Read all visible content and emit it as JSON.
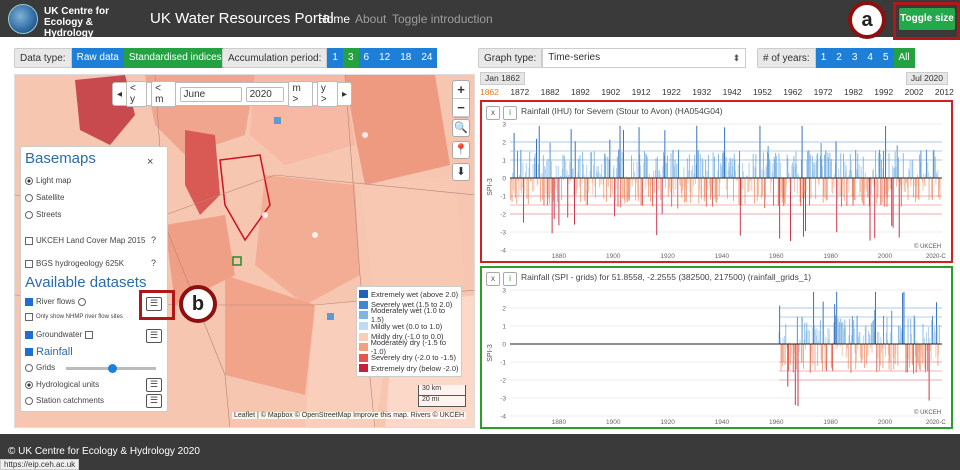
{
  "header": {
    "logo_line1": "UK Centre for",
    "logo_line2": "Ecology & Hydrology",
    "title": "UK Water Resources Portal",
    "nav": [
      "Home",
      "About",
      "Toggle introduction"
    ],
    "toggle_size": "Toggle size"
  },
  "callouts": {
    "a": "a",
    "b": "b"
  },
  "controls": {
    "datatype_label": "Data type:",
    "datatype": [
      "Raw data",
      "Standardised indices"
    ],
    "accum_label": "Accumulation period:",
    "accum": [
      "1",
      "3",
      "6",
      "12",
      "18",
      "24"
    ],
    "graph_label": "Graph type:",
    "graph_value": "Time-series",
    "years_label": "# of years:",
    "years": [
      "1",
      "2",
      "3",
      "4",
      "5",
      "All"
    ]
  },
  "map": {
    "prev_year": "< y",
    "prev_month": "< m",
    "month": "June",
    "year": "2020",
    "next_month": "m >",
    "next_year": "y >",
    "zoom_in": "+",
    "zoom_out": "−"
  },
  "basemaps": {
    "title": "Basemaps",
    "close": "×",
    "options": [
      "Light map",
      "Satellite",
      "Streets"
    ],
    "layers": [
      "UKCEH Land Cover Map 2015",
      "BGS hydrogeology 625K"
    ],
    "help": "?"
  },
  "datasets": {
    "title": "Available datasets",
    "river_flows": "River flows",
    "nhmp_only": "Only show NHMP river flow sites",
    "groundwater": "Groundwater",
    "rainfall": "Rainfall",
    "grids": "Grids",
    "hydro_units": "Hydrological units",
    "stations": "Station catchments"
  },
  "legend": [
    {
      "label": "Extremely wet (above 2.0)",
      "color": "#1f63b8"
    },
    {
      "label": "Severely wet (1.5 to 2.0)",
      "color": "#3f87d0"
    },
    {
      "label": "Moderately wet (1.0 to 1.5)",
      "color": "#7fb5e3"
    },
    {
      "label": "Mildly wet (0.0 to 1.0)",
      "color": "#bcdcf3"
    },
    {
      "label": "Mildly dry (-1.0 to 0.0)",
      "color": "#f9cdb6"
    },
    {
      "label": "Moderately dry (-1.5 to -1.0)",
      "color": "#f2a080"
    },
    {
      "label": "Severely dry (-2.0 to -1.5)",
      "color": "#e0584a"
    },
    {
      "label": "Extremely dry (below -2.0)",
      "color": "#c8203a"
    }
  ],
  "scale": {
    "km": "30 km",
    "mi": "20 mi"
  },
  "attribution": "Leaflet | © Mapbox © OpenStreetMap Improve this map. Rivers © UKCEH",
  "timeline": {
    "start": "Jan 1862",
    "end": "Jul 2020",
    "ticks": [
      "1862",
      "1872",
      "1882",
      "1892",
      "1902",
      "1912",
      "1922",
      "1932",
      "1942",
      "1952",
      "1962",
      "1972",
      "1982",
      "1992",
      "2002",
      "2012"
    ]
  },
  "chart_data": [
    {
      "type": "bar",
      "title": "Rainfall (IHU) for Severn (Stour to Avon) (HA054G04)",
      "ylabel": "SPI-3",
      "ylim": [
        -4,
        3
      ],
      "yticks": [
        "3",
        "2",
        "1",
        "0",
        "-1",
        "-2",
        "-3",
        "-4"
      ],
      "xticks": [
        "1880",
        "1900",
        "1920",
        "1940",
        "1960",
        "1980",
        "2000"
      ],
      "xlim": [
        1862,
        2021
      ],
      "data_start": 1862,
      "credit": "© UKCEH",
      "end_label": "2020-C"
    },
    {
      "type": "bar",
      "title": "Rainfall (SPI - grids) for 51.8558, -2.2555 (382500, 217500) (rainfall_grids_1)",
      "ylabel": "SPI-3",
      "ylim": [
        -4,
        3
      ],
      "yticks": [
        "3",
        "2",
        "1",
        "0",
        "-1",
        "-2",
        "-3",
        "-4"
      ],
      "xticks": [
        "1880",
        "1900",
        "1920",
        "1940",
        "1960",
        "1980",
        "2000"
      ],
      "xlim": [
        1862,
        2021
      ],
      "data_start": 1961,
      "credit": "© UKCEH",
      "end_label": "2020-C"
    }
  ],
  "chart_buttons": {
    "close": "x",
    "info": "i"
  },
  "footer": "© UK Centre for Ecology & Hydrology 2020",
  "status_url": "https://eip.ceh.ac.uk"
}
